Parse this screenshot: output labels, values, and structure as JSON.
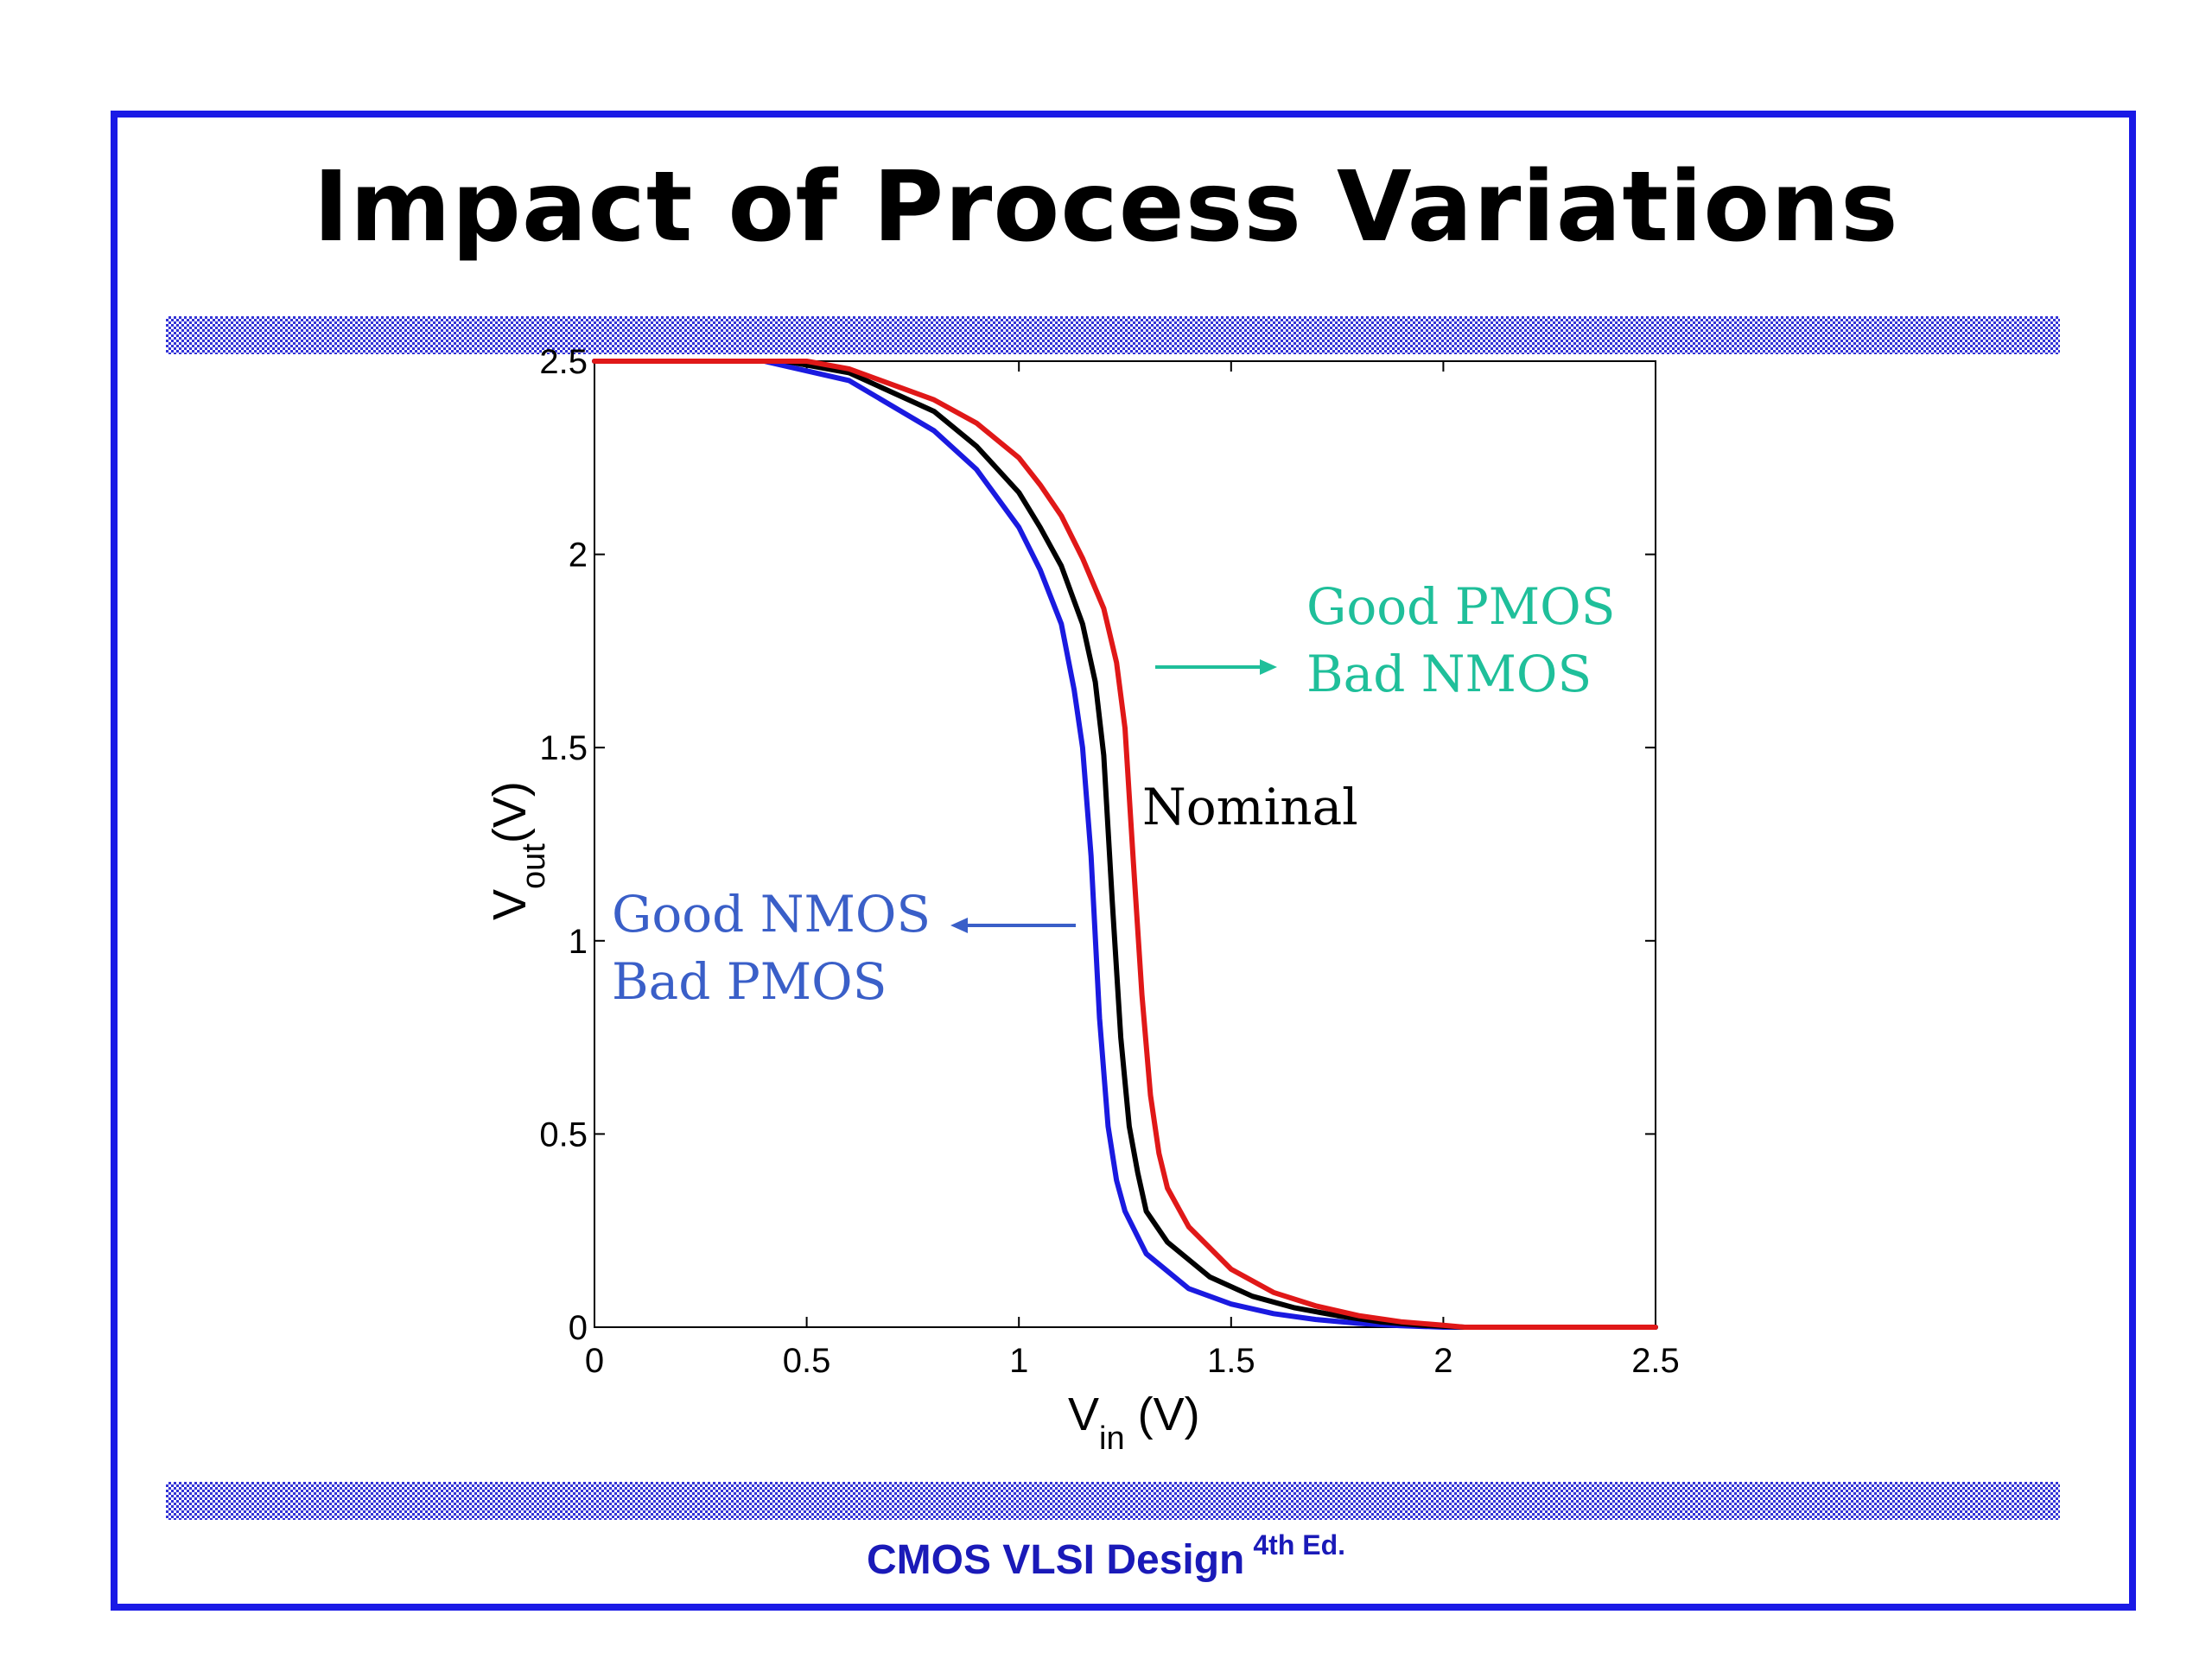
{
  "slide": {
    "title": "Impact of Process Variations",
    "footer_main": "CMOS VLSI Design",
    "footer_sup": "4th Ed."
  },
  "colors": {
    "frame": "#1a1ae6",
    "nominal": "#000000",
    "good_nmos": "#1a1ae0",
    "good_pmos": "#e01818",
    "annotation_green": "#1fbf9a",
    "annotation_blue": "#3a5fc8"
  },
  "chart_data": {
    "type": "line",
    "xlabel_main": "V",
    "xlabel_sub": "in",
    "xlabel_unit": " (V)",
    "ylabel_main": "V",
    "ylabel_sub": "out",
    "ylabel_unit": "(V)",
    "xlim": [
      0,
      2.5
    ],
    "ylim": [
      0,
      2.5
    ],
    "xticks": [
      "0",
      "0.5",
      "1",
      "1.5",
      "2",
      "2.5"
    ],
    "yticks": [
      "0",
      "0.5",
      "1",
      "1.5",
      "2",
      "2.5"
    ],
    "grid": false,
    "series": [
      {
        "key": "blue",
        "color": "#1a1ae0",
        "x": [
          0,
          0.4,
          0.6,
          0.8,
          0.9,
          1.0,
          1.05,
          1.1,
          1.13,
          1.15,
          1.17,
          1.19,
          1.21,
          1.23,
          1.25,
          1.3,
          1.4,
          1.5,
          1.6,
          1.7,
          1.8,
          1.9,
          2.0,
          2.5
        ],
        "y": [
          2.5,
          2.5,
          2.45,
          2.32,
          2.22,
          2.07,
          1.96,
          1.82,
          1.65,
          1.5,
          1.22,
          0.8,
          0.52,
          0.38,
          0.3,
          0.19,
          0.1,
          0.06,
          0.035,
          0.02,
          0.01,
          0.004,
          0.0,
          0.0
        ]
      },
      {
        "key": "black",
        "color": "#000000",
        "x": [
          0,
          0.45,
          0.6,
          0.8,
          0.9,
          1.0,
          1.05,
          1.1,
          1.15,
          1.18,
          1.2,
          1.22,
          1.24,
          1.26,
          1.28,
          1.3,
          1.35,
          1.45,
          1.55,
          1.65,
          1.75,
          1.85,
          1.95,
          2.05,
          2.5
        ],
        "y": [
          2.5,
          2.5,
          2.47,
          2.37,
          2.28,
          2.16,
          2.07,
          1.97,
          1.82,
          1.67,
          1.48,
          1.1,
          0.75,
          0.52,
          0.4,
          0.3,
          0.22,
          0.13,
          0.08,
          0.05,
          0.03,
          0.014,
          0.005,
          0.0,
          0.0
        ]
      },
      {
        "key": "red",
        "color": "#e01818",
        "x": [
          0,
          0.5,
          0.6,
          0.8,
          0.9,
          1.0,
          1.05,
          1.1,
          1.15,
          1.2,
          1.23,
          1.25,
          1.27,
          1.29,
          1.31,
          1.33,
          1.35,
          1.4,
          1.5,
          1.6,
          1.7,
          1.8,
          1.9,
          2.0,
          2.05,
          2.5
        ],
        "y": [
          2.5,
          2.5,
          2.48,
          2.4,
          2.34,
          2.25,
          2.18,
          2.1,
          1.99,
          1.86,
          1.72,
          1.55,
          1.2,
          0.86,
          0.6,
          0.45,
          0.36,
          0.26,
          0.15,
          0.09,
          0.055,
          0.03,
          0.014,
          0.005,
          0.0,
          0.0
        ]
      }
    ],
    "annotations": {
      "good_pmos_line1": "Good PMOS",
      "good_pmos_line2": "Bad NMOS",
      "nominal": "Nominal",
      "good_nmos_line1": "Good NMOS",
      "good_nmos_line2": "Bad PMOS"
    }
  }
}
